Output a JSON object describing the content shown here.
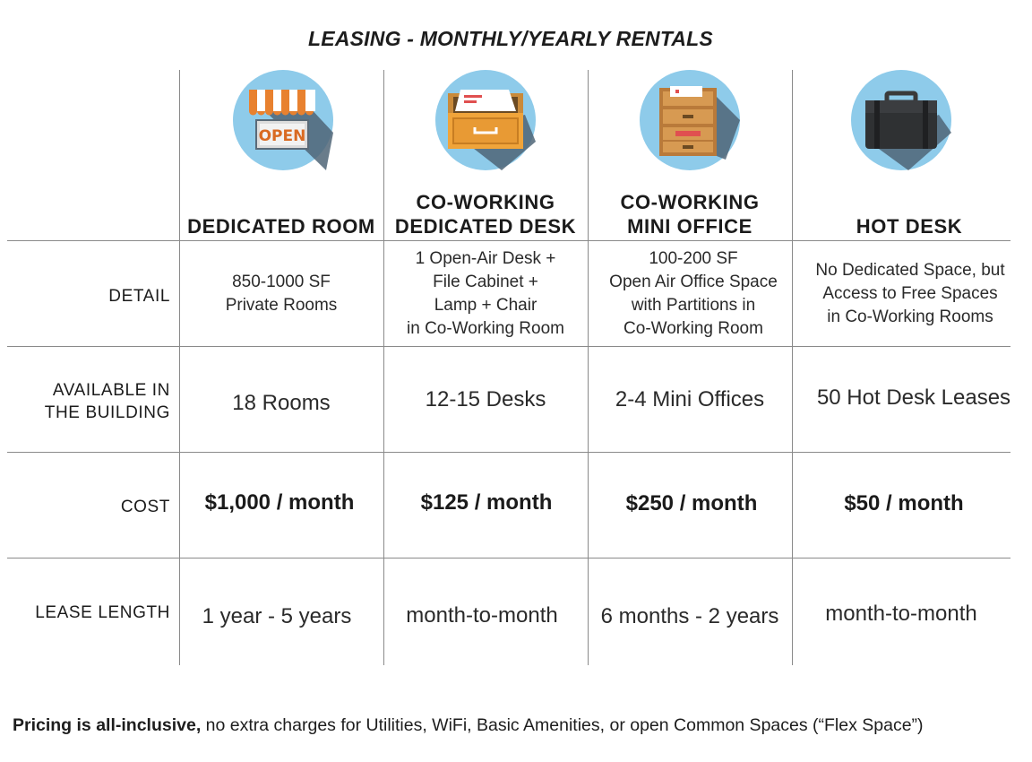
{
  "title": "LEASING - MONTHLY/YEARLY RENTALS",
  "icons": [
    "open-storefront-icon",
    "file-drawer-icon",
    "filing-cabinet-icon",
    "briefcase-icon"
  ],
  "columns": [
    {
      "line1": "",
      "line2": "DEDICATED ROOM"
    },
    {
      "line1": "CO-WORKING",
      "line2": "DEDICATED DESK"
    },
    {
      "line1": "CO-WORKING",
      "line2": "MINI OFFICE"
    },
    {
      "line1": "",
      "line2": "HOT DESK"
    }
  ],
  "rows": {
    "detail": {
      "label": "DETAIL",
      "cells": [
        [
          "850-1000 SF",
          "Private Rooms"
        ],
        [
          "1 Open-Air Desk +",
          "File Cabinet +",
          "Lamp + Chair",
          "in Co-Working Room"
        ],
        [
          "100-200 SF",
          "Open Air Office Space",
          "with Partitions in",
          "Co-Working Room"
        ],
        [
          "No Dedicated Space, but",
          "Access to Free Spaces",
          "in Co-Working Rooms"
        ]
      ]
    },
    "available": {
      "label1": "AVAILABLE IN",
      "label2": "THE BUILDING",
      "cells": [
        "18 Rooms",
        "12-15 Desks",
        "2-4 Mini Offices",
        "50 Hot Desk Leases"
      ]
    },
    "cost": {
      "label": "COST",
      "cells": [
        "$1,000 / month",
        "$125 / month",
        "$250 / month",
        "$50 / month"
      ]
    },
    "lease": {
      "label": "LEASE LENGTH",
      "cells": [
        "1 year - 5 years",
        "month-to-month",
        "6 months - 2 years",
        "month-to-month"
      ]
    }
  },
  "footer": {
    "bold": "Pricing is all-inclusive,",
    "rest": " no extra charges for Utilities, WiFi, Basic Amenities, or open Common Spaces (“Flex Space”)"
  },
  "colors": {
    "circle": "#8ecbea",
    "shadow": "#4f6577",
    "stripe": "#e8812f",
    "wood": "#d99a4b"
  }
}
